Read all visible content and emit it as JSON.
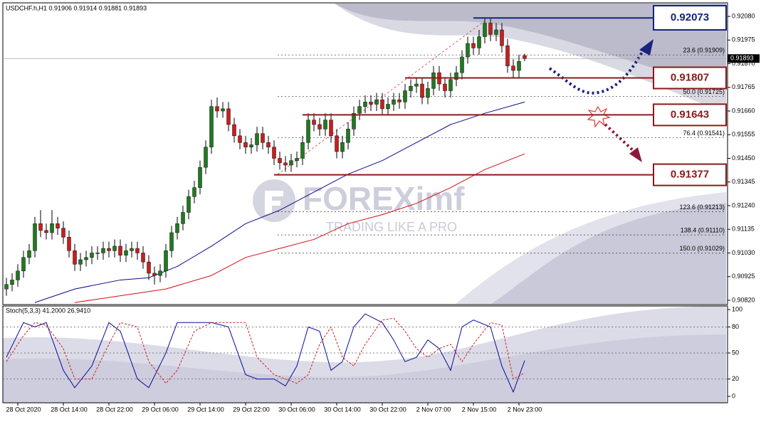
{
  "chart_data": [
    {
      "type": "candlestick",
      "title": "USDCHF.h,H1  0.91906 0.91914 0.91881 0.91893",
      "up_color": "#1f7a1f",
      "down_color": "#c81e1e",
      "ylim": [
        0.90804,
        0.92137
      ],
      "yticks": [
        {
          "value": 0.9208,
          "label": "0.92080"
        },
        {
          "value": 0.91975,
          "label": "0.91975"
        },
        {
          "value": 0.9187,
          "label": "0.91870"
        },
        {
          "value": 0.91765,
          "label": "0.91765"
        },
        {
          "value": 0.9166,
          "label": "0.91660"
        },
        {
          "value": 0.91555,
          "label": "0.91555"
        },
        {
          "value": 0.9145,
          "label": "0.91450"
        },
        {
          "value": 0.91345,
          "label": "0.91345"
        },
        {
          "value": 0.9124,
          "label": "0.91240"
        },
        {
          "value": 0.91135,
          "label": "0.91135"
        },
        {
          "value": 0.9103,
          "label": "0.91030"
        },
        {
          "value": 0.90925,
          "label": "0.90925"
        },
        {
          "value": 0.9082,
          "label": "0.90820"
        }
      ],
      "xticks": [
        {
          "value": 2,
          "label": "28 Oct 2020"
        },
        {
          "value": 10,
          "label": "28 Oct 14:00"
        },
        {
          "value": 18,
          "label": "28 Oct 22:00"
        },
        {
          "value": 26,
          "label": "29 Oct 06:00"
        },
        {
          "value": 34,
          "label": "29 Oct 14:00"
        },
        {
          "value": 42,
          "label": "29 Oct 22:00"
        },
        {
          "value": 50,
          "label": "30 Oct 06:00"
        },
        {
          "value": 58,
          "label": "30 Oct 14:00"
        },
        {
          "value": 66,
          "label": "30 Oct 22:00"
        },
        {
          "value": 74,
          "label": "2 Nov 07:00"
        },
        {
          "value": 82,
          "label": "2 Nov 15:00"
        },
        {
          "value": 90,
          "label": "2 Nov 23:00"
        }
      ],
      "candles": [
        [
          0.9087,
          0.9092,
          0.9084,
          0.9089
        ],
        [
          0.9089,
          0.9094,
          0.9086,
          0.9091
        ],
        [
          0.9091,
          0.9098,
          0.9088,
          0.9095
        ],
        [
          0.9095,
          0.9104,
          0.9092,
          0.9101
        ],
        [
          0.9101,
          0.9107,
          0.9098,
          0.9104
        ],
        [
          0.9104,
          0.9119,
          0.9101,
          0.9116
        ],
        [
          0.9116,
          0.9122,
          0.911,
          0.9113
        ],
        [
          0.9113,
          0.9116,
          0.9109,
          0.9112
        ],
        [
          0.9112,
          0.9122,
          0.9109,
          0.9116
        ],
        [
          0.9116,
          0.9119,
          0.9111,
          0.9114
        ],
        [
          0.9114,
          0.9117,
          0.9107,
          0.911
        ],
        [
          0.911,
          0.9113,
          0.9101,
          0.9104
        ],
        [
          0.9104,
          0.9107,
          0.9095,
          0.9098
        ],
        [
          0.9098,
          0.9103,
          0.9095,
          0.91
        ],
        [
          0.91,
          0.9104,
          0.9097,
          0.9101
        ],
        [
          0.9101,
          0.9106,
          0.9098,
          0.9103
        ],
        [
          0.9103,
          0.9106,
          0.91,
          0.9103
        ],
        [
          0.9103,
          0.9108,
          0.91,
          0.9105
        ],
        [
          0.9105,
          0.9108,
          0.9101,
          0.9104
        ],
        [
          0.9104,
          0.9109,
          0.9101,
          0.9106
        ],
        [
          0.9106,
          0.9109,
          0.9099,
          0.9102
        ],
        [
          0.9102,
          0.9107,
          0.9099,
          0.9104
        ],
        [
          0.9104,
          0.9108,
          0.9101,
          0.9105
        ],
        [
          0.9105,
          0.9108,
          0.91,
          0.9103
        ],
        [
          0.9103,
          0.9106,
          0.9096,
          0.9099
        ],
        [
          0.9099,
          0.9102,
          0.9091,
          0.9094
        ],
        [
          0.9094,
          0.9097,
          0.9089,
          0.9093
        ],
        [
          0.9093,
          0.9098,
          0.909,
          0.9095
        ],
        [
          0.9095,
          0.9107,
          0.9092,
          0.9104
        ],
        [
          0.9104,
          0.9115,
          0.9101,
          0.9112
        ],
        [
          0.9112,
          0.9119,
          0.9109,
          0.9116
        ],
        [
          0.9116,
          0.9124,
          0.9113,
          0.9121
        ],
        [
          0.9121,
          0.9131,
          0.9118,
          0.9128
        ],
        [
          0.9128,
          0.9135,
          0.9125,
          0.9132
        ],
        [
          0.9132,
          0.9144,
          0.9129,
          0.9141
        ],
        [
          0.9141,
          0.9153,
          0.9138,
          0.915
        ],
        [
          0.915,
          0.9171,
          0.9147,
          0.9168
        ],
        [
          0.9168,
          0.9172,
          0.9163,
          0.9166
        ],
        [
          0.9166,
          0.917,
          0.9163,
          0.9167
        ],
        [
          0.9167,
          0.917,
          0.9157,
          0.916
        ],
        [
          0.916,
          0.9163,
          0.9152,
          0.9155
        ],
        [
          0.9155,
          0.9158,
          0.9149,
          0.9152
        ],
        [
          0.9152,
          0.9155,
          0.9147,
          0.915
        ],
        [
          0.915,
          0.9154,
          0.9147,
          0.9151
        ],
        [
          0.9151,
          0.9159,
          0.9148,
          0.9156
        ],
        [
          0.9156,
          0.9159,
          0.9149,
          0.9152
        ],
        [
          0.9152,
          0.9155,
          0.9147,
          0.915
        ],
        [
          0.915,
          0.9153,
          0.9142,
          0.9145
        ],
        [
          0.9145,
          0.9148,
          0.914,
          0.9143
        ],
        [
          0.9143,
          0.9146,
          0.9139,
          0.9142
        ],
        [
          0.9142,
          0.9147,
          0.9139,
          0.9144
        ],
        [
          0.9144,
          0.9148,
          0.9141,
          0.9145
        ],
        [
          0.9145,
          0.9155,
          0.9142,
          0.9152
        ],
        [
          0.9152,
          0.9165,
          0.9149,
          0.9162
        ],
        [
          0.9162,
          0.9165,
          0.9157,
          0.916
        ],
        [
          0.916,
          0.9163,
          0.9155,
          0.9158
        ],
        [
          0.9158,
          0.9165,
          0.9155,
          0.9162
        ],
        [
          0.9162,
          0.9165,
          0.9152,
          0.9155
        ],
        [
          0.9155,
          0.9158,
          0.9145,
          0.9148
        ],
        [
          0.9148,
          0.9155,
          0.9145,
          0.9152
        ],
        [
          0.9152,
          0.9161,
          0.9149,
          0.9158
        ],
        [
          0.9158,
          0.9168,
          0.9155,
          0.9165
        ],
        [
          0.9165,
          0.9171,
          0.9162,
          0.9168
        ],
        [
          0.9168,
          0.9173,
          0.9165,
          0.917
        ],
        [
          0.917,
          0.9173,
          0.9166,
          0.9169
        ],
        [
          0.9169,
          0.9174,
          0.9166,
          0.9171
        ],
        [
          0.9171,
          0.9174,
          0.9164,
          0.9167
        ],
        [
          0.9167,
          0.9172,
          0.9164,
          0.9169
        ],
        [
          0.9169,
          0.9174,
          0.9166,
          0.9171
        ],
        [
          0.9171,
          0.9174,
          0.9167,
          0.917
        ],
        [
          0.917,
          0.9178,
          0.9167,
          0.9175
        ],
        [
          0.9175,
          0.918,
          0.9172,
          0.9177
        ],
        [
          0.9177,
          0.9181,
          0.9174,
          0.9178
        ],
        [
          0.9178,
          0.9181,
          0.9169,
          0.9172
        ],
        [
          0.9172,
          0.9179,
          0.9169,
          0.9176
        ],
        [
          0.9176,
          0.9186,
          0.9173,
          0.9183
        ],
        [
          0.9183,
          0.9186,
          0.9175,
          0.9178
        ],
        [
          0.9178,
          0.9181,
          0.9172,
          0.9175
        ],
        [
          0.9175,
          0.9183,
          0.9172,
          0.918
        ],
        [
          0.918,
          0.9186,
          0.9177,
          0.9183
        ],
        [
          0.9183,
          0.9193,
          0.918,
          0.919
        ],
        [
          0.919,
          0.9199,
          0.9187,
          0.9196
        ],
        [
          0.9196,
          0.9199,
          0.9191,
          0.9194
        ],
        [
          0.9194,
          0.9202,
          0.9191,
          0.9199
        ],
        [
          0.9199,
          0.92073,
          0.9196,
          0.9205
        ],
        [
          0.9205,
          0.9207,
          0.9197,
          0.92
        ],
        [
          0.92,
          0.9205,
          0.9197,
          0.9202
        ],
        [
          0.9202,
          0.9205,
          0.9192,
          0.9195
        ],
        [
          0.9195,
          0.9198,
          0.9183,
          0.9186
        ],
        [
          0.9186,
          0.9189,
          0.9181,
          0.9184
        ],
        [
          0.9184,
          0.9191,
          0.9181,
          0.9188
        ],
        [
          0.91906,
          0.91914,
          0.91881,
          0.91893
        ]
      ],
      "overlays": [
        {
          "color": "#0a0a8c",
          "x": [
            5,
            12,
            20,
            25,
            30,
            36,
            42,
            48,
            54,
            60,
            66,
            72,
            78,
            84,
            91
          ],
          "values": [
            0.9081,
            0.9087,
            0.9091,
            0.9092,
            0.9097,
            0.9106,
            0.9116,
            0.9122,
            0.913,
            0.9138,
            0.9144,
            0.9152,
            0.916,
            0.9165,
            0.917
          ]
        },
        {
          "color": "#d01010",
          "x": [
            12,
            20,
            28,
            36,
            42,
            48,
            54,
            60,
            66,
            72,
            78,
            84,
            91
          ],
          "values": [
            0.9081,
            0.9084,
            0.9087,
            0.9093,
            0.9101,
            0.9105,
            0.9109,
            0.9116,
            0.912,
            0.9125,
            0.9132,
            0.914,
            0.9147
          ]
        }
      ],
      "current_price": 0.91893,
      "levels": [
        {
          "value": 0.92073,
          "color": "#16237a",
          "start": 82
        },
        {
          "value": 0.91807,
          "color": "#8b1a1a",
          "start": 70
        },
        {
          "value": 0.91643,
          "color": "#8b1a1a",
          "start": 52
        },
        {
          "value": 0.91377,
          "color": "#8b1a1a",
          "start": 47
        }
      ],
      "fib_levels": [
        {
          "value": 0.91909,
          "label": "23.6 (0.91909)"
        },
        {
          "value": 0.91725,
          "label": "50.0 (0.91725)"
        },
        {
          "value": 0.91541,
          "label": "76.4 (0.91541)"
        },
        {
          "value": 0.91213,
          "label": "123.6 (0.91213)"
        },
        {
          "value": 0.9111,
          "label": "138.4 (0.91110)"
        },
        {
          "value": 0.91029,
          "label": "150.0 (0.91029)"
        }
      ],
      "watermark": {
        "brand": "FOREXimf",
        "tagline": "TRADING LIKE A PRO"
      }
    },
    {
      "type": "line",
      "title": "Stoch(5,3,3) 41.2000 26.9410",
      "ylim": [
        -7.4,
        104.1
      ],
      "yticks": [
        100,
        80,
        50,
        20,
        0
      ],
      "levels": [
        80,
        50,
        20
      ],
      "x": [
        0,
        3,
        5,
        7,
        10,
        12,
        15,
        18,
        20,
        23,
        25,
        28,
        30,
        33,
        36,
        39,
        42,
        44,
        47,
        49,
        51,
        53,
        55,
        57,
        59,
        61,
        63,
        66,
        68,
        70,
        72,
        74,
        76,
        78,
        80,
        82,
        85,
        87,
        89,
        91
      ],
      "series": [
        {
          "color": "#0a0a9c",
          "values": [
            45,
            85,
            80,
            85,
            30,
            10,
            35,
            85,
            75,
            20,
            10,
            50,
            85,
            85,
            85,
            80,
            25,
            20,
            20,
            12,
            35,
            80,
            75,
            30,
            40,
            80,
            95,
            85,
            65,
            40,
            45,
            65,
            55,
            30,
            80,
            88,
            80,
            35,
            5,
            41.2
          ]
        },
        {
          "color": "#d02020",
          "dashed": true,
          "values": [
            40,
            70,
            85,
            82,
            55,
            20,
            20,
            60,
            85,
            80,
            40,
            15,
            30,
            75,
            85,
            85,
            85,
            45,
            25,
            20,
            15,
            25,
            60,
            80,
            45,
            35,
            60,
            88,
            90,
            75,
            55,
            45,
            55,
            60,
            40,
            60,
            85,
            82,
            20,
            26.941
          ]
        }
      ]
    }
  ]
}
